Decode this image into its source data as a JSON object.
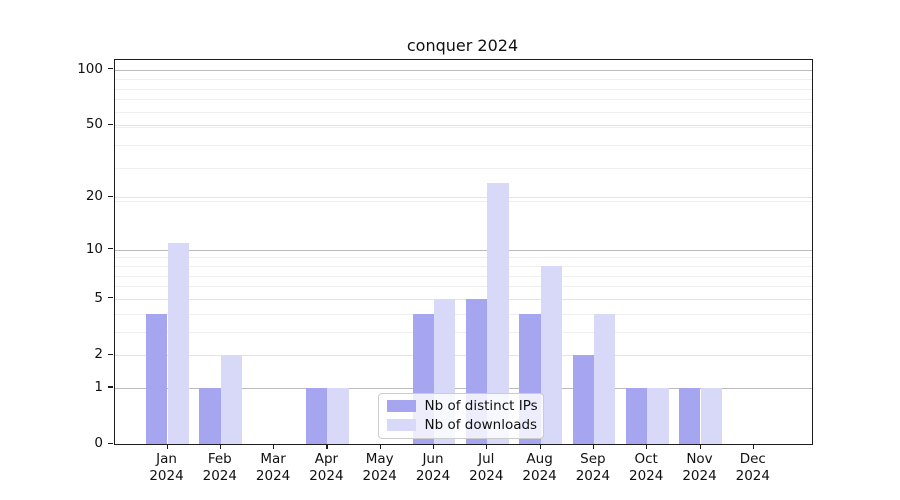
{
  "title": "conquer 2024",
  "legend": {
    "items": [
      {
        "label": "Nb of distinct IPs",
        "color": "#a6a6f0"
      },
      {
        "label": "Nb of downloads",
        "color": "#d8d8f8"
      }
    ]
  },
  "axes": {
    "y_tick_labels": [
      "100",
      "50",
      "20",
      "10",
      "5",
      "2",
      "1",
      "0"
    ],
    "x_year_label": "2024"
  },
  "colors": {
    "major_grid": "#bbbbbb",
    "medium_grid": "#e4e4e4",
    "minor_grid": "#efefef",
    "spine": "#1c1c1c",
    "background": "#ffffff"
  },
  "chart_data": {
    "type": "bar",
    "title": "conquer 2024",
    "categories": [
      "Jan",
      "Feb",
      "Mar",
      "Apr",
      "May",
      "Jun",
      "Jul",
      "Aug",
      "Sep",
      "Oct",
      "Nov",
      "Dec"
    ],
    "year": "2024",
    "series": [
      {
        "name": "Nb of distinct IPs",
        "color": "#a6a6f0",
        "values": [
          4,
          1,
          0,
          1,
          0,
          4,
          5,
          4,
          2,
          1,
          1,
          0
        ]
      },
      {
        "name": "Nb of downloads",
        "color": "#d8d8f8",
        "values": [
          11,
          2,
          0,
          1,
          0,
          5,
          24,
          8,
          4,
          1,
          1,
          0
        ]
      }
    ],
    "xlabel": "",
    "ylabel": "",
    "yscale": "log1p",
    "yticks": [
      100,
      50,
      20,
      10,
      5,
      2,
      1,
      0
    ],
    "ylim": [
      0,
      112
    ],
    "grid": "horizontal",
    "legend_position": "lower center-right inside plot"
  }
}
